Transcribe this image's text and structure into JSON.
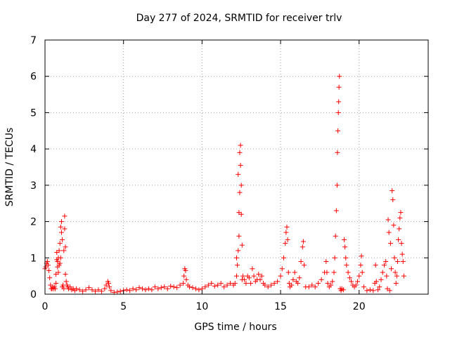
{
  "chart_data": {
    "type": "scatter",
    "title": "Day 277 of 2024, SRMTID for receiver trlv",
    "xlabel": "GPS time / hours",
    "ylabel": "SRMTID / TECUs",
    "xlim": [
      0,
      24.4
    ],
    "ylim": [
      0,
      7
    ],
    "xticks": [
      0,
      5,
      10,
      15,
      20
    ],
    "yticks": [
      0,
      1,
      2,
      3,
      4,
      5,
      6,
      7
    ],
    "xtick_labels": [
      "0",
      "5",
      "10",
      "15",
      "20"
    ],
    "ytick_labels": [
      "0",
      "1",
      "2",
      "3",
      "4",
      "5",
      "6",
      "7"
    ],
    "grid": true,
    "marker": "+",
    "color": "#ff0000",
    "series": [
      {
        "name": "SRMTID",
        "points": [
          [
            0.0,
            0.7
          ],
          [
            0.05,
            0.75
          ],
          [
            0.1,
            0.85
          ],
          [
            0.15,
            0.9
          ],
          [
            0.2,
            0.8
          ],
          [
            0.25,
            0.65
          ],
          [
            0.3,
            0.45
          ],
          [
            0.35,
            0.25
          ],
          [
            0.4,
            0.15
          ],
          [
            0.45,
            0.15
          ],
          [
            0.5,
            0.2
          ],
          [
            0.55,
            0.15
          ],
          [
            0.6,
            0.2
          ],
          [
            0.65,
            0.15
          ],
          [
            0.7,
            0.3
          ],
          [
            0.7,
            0.55
          ],
          [
            0.75,
            0.95
          ],
          [
            0.75,
            1.15
          ],
          [
            0.8,
            0.75
          ],
          [
            0.8,
            0.9
          ],
          [
            0.85,
            1.0
          ],
          [
            0.85,
            0.6
          ],
          [
            0.9,
            0.8
          ],
          [
            0.9,
            1.2
          ],
          [
            0.95,
            0.85
          ],
          [
            0.95,
            1.4
          ],
          [
            1.0,
            1.0
          ],
          [
            1.0,
            1.85
          ],
          [
            1.05,
            2.0
          ],
          [
            1.05,
            1.7
          ],
          [
            1.1,
            1.5
          ],
          [
            1.1,
            0.2
          ],
          [
            1.15,
            0.25
          ],
          [
            1.2,
            1.2
          ],
          [
            1.2,
            0.15
          ],
          [
            1.25,
            2.15
          ],
          [
            1.25,
            1.8
          ],
          [
            1.3,
            1.3
          ],
          [
            1.3,
            0.55
          ],
          [
            1.35,
            0.35
          ],
          [
            1.4,
            0.25
          ],
          [
            1.45,
            0.2
          ],
          [
            1.5,
            0.15
          ],
          [
            1.6,
            0.2
          ],
          [
            1.7,
            0.12
          ],
          [
            1.8,
            0.15
          ],
          [
            1.9,
            0.1
          ],
          [
            2.0,
            0.15
          ],
          [
            2.2,
            0.12
          ],
          [
            2.4,
            0.08
          ],
          [
            2.6,
            0.12
          ],
          [
            2.8,
            0.18
          ],
          [
            3.0,
            0.12
          ],
          [
            3.2,
            0.08
          ],
          [
            3.4,
            0.12
          ],
          [
            3.6,
            0.08
          ],
          [
            3.8,
            0.15
          ],
          [
            3.9,
            0.25
          ],
          [
            4.0,
            0.35
          ],
          [
            4.05,
            0.3
          ],
          [
            4.1,
            0.2
          ],
          [
            4.2,
            0.1
          ],
          [
            4.4,
            0.05
          ],
          [
            4.6,
            0.06
          ],
          [
            4.8,
            0.08
          ],
          [
            5.0,
            0.1
          ],
          [
            5.2,
            0.12
          ],
          [
            5.4,
            0.1
          ],
          [
            5.6,
            0.15
          ],
          [
            5.8,
            0.12
          ],
          [
            6.0,
            0.18
          ],
          [
            6.2,
            0.15
          ],
          [
            6.4,
            0.12
          ],
          [
            6.6,
            0.15
          ],
          [
            6.8,
            0.12
          ],
          [
            7.0,
            0.2
          ],
          [
            7.2,
            0.15
          ],
          [
            7.4,
            0.18
          ],
          [
            7.6,
            0.2
          ],
          [
            7.8,
            0.15
          ],
          [
            8.0,
            0.22
          ],
          [
            8.2,
            0.2
          ],
          [
            8.4,
            0.18
          ],
          [
            8.6,
            0.25
          ],
          [
            8.8,
            0.3
          ],
          [
            8.85,
            0.5
          ],
          [
            8.9,
            0.7
          ],
          [
            8.95,
            0.65
          ],
          [
            9.0,
            0.4
          ],
          [
            9.1,
            0.25
          ],
          [
            9.2,
            0.2
          ],
          [
            9.4,
            0.18
          ],
          [
            9.6,
            0.15
          ],
          [
            9.8,
            0.12
          ],
          [
            10.0,
            0.15
          ],
          [
            10.2,
            0.2
          ],
          [
            10.4,
            0.25
          ],
          [
            10.6,
            0.3
          ],
          [
            10.8,
            0.22
          ],
          [
            11.0,
            0.25
          ],
          [
            11.2,
            0.3
          ],
          [
            11.4,
            0.2
          ],
          [
            11.6,
            0.25
          ],
          [
            11.8,
            0.3
          ],
          [
            12.0,
            0.25
          ],
          [
            12.1,
            0.3
          ],
          [
            12.2,
            0.5
          ],
          [
            12.2,
            1.0
          ],
          [
            12.25,
            0.8
          ],
          [
            12.3,
            3.3
          ],
          [
            12.3,
            1.2
          ],
          [
            12.35,
            2.25
          ],
          [
            12.35,
            1.6
          ],
          [
            12.4,
            3.9
          ],
          [
            12.4,
            2.8
          ],
          [
            12.45,
            4.1
          ],
          [
            12.45,
            3.55
          ],
          [
            12.5,
            2.2
          ],
          [
            12.5,
            3.0
          ],
          [
            12.55,
            1.35
          ],
          [
            12.55,
            0.4
          ],
          [
            12.6,
            0.5
          ],
          [
            12.7,
            0.4
          ],
          [
            12.8,
            0.3
          ],
          [
            12.9,
            0.5
          ],
          [
            13.0,
            0.45
          ],
          [
            13.1,
            0.3
          ],
          [
            13.2,
            0.7
          ],
          [
            13.3,
            0.5
          ],
          [
            13.4,
            0.35
          ],
          [
            13.5,
            0.4
          ],
          [
            13.6,
            0.55
          ],
          [
            13.7,
            0.4
          ],
          [
            13.8,
            0.5
          ],
          [
            13.9,
            0.3
          ],
          [
            14.0,
            0.25
          ],
          [
            14.2,
            0.2
          ],
          [
            14.4,
            0.25
          ],
          [
            14.6,
            0.3
          ],
          [
            14.8,
            0.35
          ],
          [
            15.0,
            0.5
          ],
          [
            15.1,
            0.7
          ],
          [
            15.2,
            1.0
          ],
          [
            15.3,
            1.4
          ],
          [
            15.35,
            1.7
          ],
          [
            15.4,
            1.85
          ],
          [
            15.45,
            1.5
          ],
          [
            15.5,
            0.6
          ],
          [
            15.55,
            0.3
          ],
          [
            15.6,
            0.2
          ],
          [
            15.7,
            0.25
          ],
          [
            15.8,
            0.4
          ],
          [
            15.9,
            0.6
          ],
          [
            16.0,
            0.35
          ],
          [
            16.1,
            0.3
          ],
          [
            16.2,
            0.45
          ],
          [
            16.3,
            0.9
          ],
          [
            16.4,
            1.3
          ],
          [
            16.45,
            1.45
          ],
          [
            16.5,
            0.8
          ],
          [
            16.6,
            0.2
          ],
          [
            16.8,
            0.2
          ],
          [
            17.0,
            0.25
          ],
          [
            17.2,
            0.2
          ],
          [
            17.4,
            0.3
          ],
          [
            17.6,
            0.4
          ],
          [
            17.8,
            0.6
          ],
          [
            17.9,
            0.9
          ],
          [
            17.95,
            0.6
          ],
          [
            18.0,
            0.3
          ],
          [
            18.1,
            0.2
          ],
          [
            18.2,
            0.25
          ],
          [
            18.3,
            0.35
          ],
          [
            18.4,
            0.6
          ],
          [
            18.45,
            1.0
          ],
          [
            18.5,
            1.6
          ],
          [
            18.55,
            2.3
          ],
          [
            18.6,
            3.0
          ],
          [
            18.62,
            3.9
          ],
          [
            18.65,
            4.5
          ],
          [
            18.68,
            5.0
          ],
          [
            18.7,
            5.3
          ],
          [
            18.72,
            5.7
          ],
          [
            18.75,
            6.0
          ],
          [
            18.8,
            0.15
          ],
          [
            18.85,
            0.1
          ],
          [
            18.9,
            0.15
          ],
          [
            19.0,
            0.12
          ],
          [
            19.05,
            1.5
          ],
          [
            19.1,
            1.3
          ],
          [
            19.15,
            1.0
          ],
          [
            19.2,
            0.8
          ],
          [
            19.3,
            0.6
          ],
          [
            19.4,
            0.45
          ],
          [
            19.5,
            0.35
          ],
          [
            19.6,
            0.25
          ],
          [
            19.7,
            0.2
          ],
          [
            19.8,
            0.25
          ],
          [
            19.9,
            0.35
          ],
          [
            20.0,
            0.5
          ],
          [
            20.1,
            0.8
          ],
          [
            20.15,
            1.05
          ],
          [
            20.2,
            0.6
          ],
          [
            20.3,
            0.2
          ],
          [
            20.5,
            0.1
          ],
          [
            20.7,
            0.12
          ],
          [
            20.9,
            0.1
          ],
          [
            21.0,
            0.3
          ],
          [
            21.05,
            0.8
          ],
          [
            21.1,
            0.35
          ],
          [
            21.2,
            0.12
          ],
          [
            21.3,
            0.2
          ],
          [
            21.4,
            0.4
          ],
          [
            21.5,
            0.6
          ],
          [
            21.6,
            0.8
          ],
          [
            21.7,
            0.9
          ],
          [
            21.75,
            0.5
          ],
          [
            21.8,
            0.15
          ],
          [
            21.85,
            2.05
          ],
          [
            21.9,
            1.7
          ],
          [
            21.95,
            0.1
          ],
          [
            22.0,
            1.4
          ],
          [
            22.05,
            0.7
          ],
          [
            22.1,
            2.85
          ],
          [
            22.15,
            2.6
          ],
          [
            22.2,
            1.9
          ],
          [
            22.25,
            1.0
          ],
          [
            22.3,
            0.6
          ],
          [
            22.35,
            0.3
          ],
          [
            22.4,
            0.5
          ],
          [
            22.45,
            0.9
          ],
          [
            22.5,
            1.5
          ],
          [
            22.55,
            1.8
          ],
          [
            22.6,
            2.1
          ],
          [
            22.65,
            2.25
          ],
          [
            22.7,
            1.4
          ],
          [
            22.75,
            1.1
          ],
          [
            22.8,
            0.9
          ],
          [
            22.85,
            0.5
          ]
        ]
      }
    ]
  }
}
